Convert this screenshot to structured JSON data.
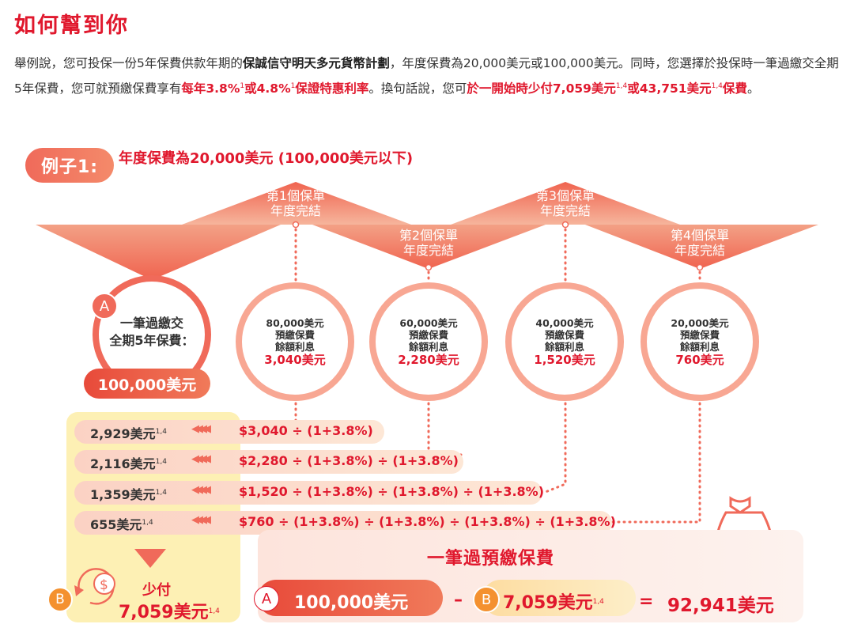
{
  "header": {
    "title": "如何幫到你"
  },
  "intro": {
    "p1": "舉例說，您可投保一份5年保費供款年期的",
    "plan": "保誠信守明天多元貨幣計劃",
    "p2": "，年度保費為20,000美元或100,000美元。同時，您選擇於投保時一筆過繳交全期5年保費，您可就預繳保費享有",
    "rate1": "每年3.8%",
    "sup1": "1",
    "or1": "或",
    "rate2": "4.8%",
    "sup2": "1",
    "rate_tail": "保證特惠利率",
    "p3": "。換句話說，您可",
    "save_prefix": "於一開始時少付7,059美元",
    "sup3": "1,4",
    "or2": "或",
    "save2": "43,751美元",
    "sup4": "1,4",
    "save_suffix": "保費",
    "end": "。"
  },
  "example": {
    "badge": "例子1:",
    "subtitle": "年度保費為20,000美元 (100,000美元以下)"
  },
  "policy_years": [
    {
      "line1": "第1個保單",
      "line2": "年度完結"
    },
    {
      "line1": "第2個保單",
      "line2": "年度完結"
    },
    {
      "line1": "第3個保單",
      "line2": "年度完結"
    },
    {
      "line1": "第4個保單",
      "line2": "年度完結"
    }
  ],
  "lump_sum": {
    "badge": "A",
    "line1": "一筆過繳交",
    "line2": "全期5年保費：",
    "amount": "100,000美元"
  },
  "balances": [
    {
      "balance": "80,000美元",
      "l1": "預繳保費",
      "l2": "餘額利息",
      "interest": "3,040美元"
    },
    {
      "balance": "60,000美元",
      "l1": "預繳保費",
      "l2": "餘額利息",
      "interest": "2,280美元"
    },
    {
      "balance": "40,000美元",
      "l1": "預繳保費",
      "l2": "餘額利息",
      "interest": "1,520美元"
    },
    {
      "balance": "20,000美元",
      "l1": "預繳保費",
      "l2": "餘額利息",
      "interest": "760美元"
    }
  ],
  "discount_rows": [
    {
      "value": "2,929美元",
      "sup": "1,4",
      "calc": "$3,040 ÷ (1+3.8%)"
    },
    {
      "value": "2,116美元",
      "sup": "1,4",
      "calc": "$2,280 ÷ (1+3.8%) ÷ (1+3.8%)"
    },
    {
      "value": "1,359美元",
      "sup": "1,4",
      "calc": "$1,520 ÷ (1+3.8%) ÷ (1+3.8%) ÷ (1+3.8%)"
    },
    {
      "value": "655美元",
      "sup": "1,4",
      "calc": "$760 ÷ (1+3.8%) ÷ (1+3.8%) ÷ (1+3.8%) ÷ (1+3.8%)"
    }
  ],
  "arrows_glyph": "◀◀◀◀",
  "less_pay": {
    "badge": "B",
    "label": "少付",
    "amount": "7,059美元",
    "sup": "1,4"
  },
  "prepay": {
    "title": "一筆過預繳保費",
    "a_badge": "A",
    "a_amount": "100,000美元",
    "minus": "–",
    "b_badge": "B",
    "b_amount": "7,059美元",
    "b_sup": "1,4",
    "equals": "=",
    "total": "92,941美元"
  },
  "colors": {
    "brand_red": "#e0182d",
    "coral": "#f06a5a",
    "orange": "#f4912f",
    "yellow_panel": "#fdf0b4"
  },
  "icons": [
    "dollar-cycle-icon",
    "money-bag-icon",
    "coin-stack-icon"
  ]
}
